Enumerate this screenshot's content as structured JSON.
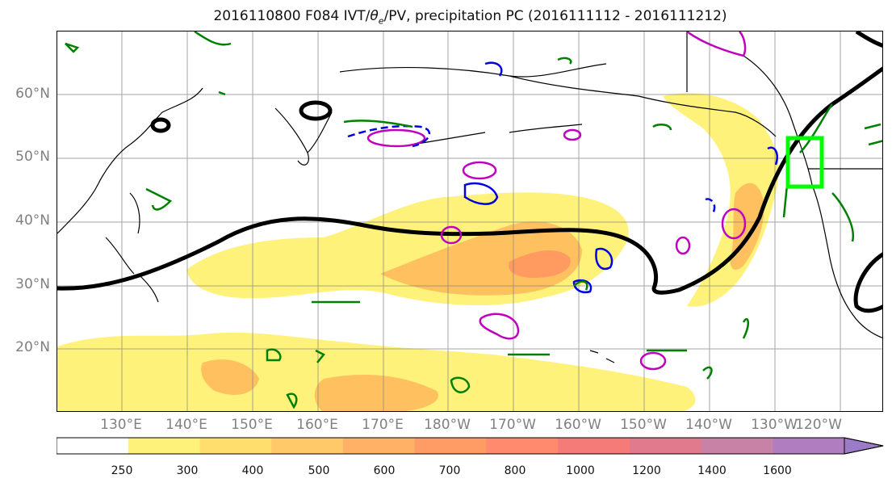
{
  "title": {
    "prefix": "2016110800 F084 IVT/",
    "theta": "θ",
    "theta_sub": "e",
    "suffix": "/PV, precipitation PC (2016111112 - 2016111212)"
  },
  "map": {
    "region": "North Pacific",
    "lat_labels": [
      "60°N",
      "50°N",
      "40°N",
      "30°N",
      "20°N"
    ],
    "lon_labels": [
      "130°E",
      "140°E",
      "150°E",
      "160°E",
      "170°E",
      "180°W",
      "170°W",
      "160°W",
      "150°W",
      "140°W",
      "130°W",
      "120°W"
    ],
    "gridlines": true,
    "colors": {
      "ivt_250": "#fff27a",
      "ivt_300": "#ffd76a",
      "ivt_400": "#ffc060",
      "ivt_500": "#ffae60",
      "ivt_600": "#ff9a60",
      "theta_contour": "#000000",
      "pv_pos": "#c000c0",
      "pv_neg": "#0000e0",
      "precip_pc": "#008000",
      "target_box": "#00ff00"
    }
  },
  "colorbar": {
    "tick_labels": [
      "250",
      "300",
      "400",
      "500",
      "600",
      "700",
      "800",
      "1000",
      "1200",
      "1400",
      "1600"
    ],
    "colors": [
      "#ffffff",
      "#fff27a",
      "#ffde6e",
      "#ffc868",
      "#ffb266",
      "#ff9c66",
      "#ff8a6e",
      "#f47b78",
      "#e07a8c",
      "#c782a6",
      "#b07ec0",
      "#9c7cc8"
    ],
    "extend": "max"
  }
}
